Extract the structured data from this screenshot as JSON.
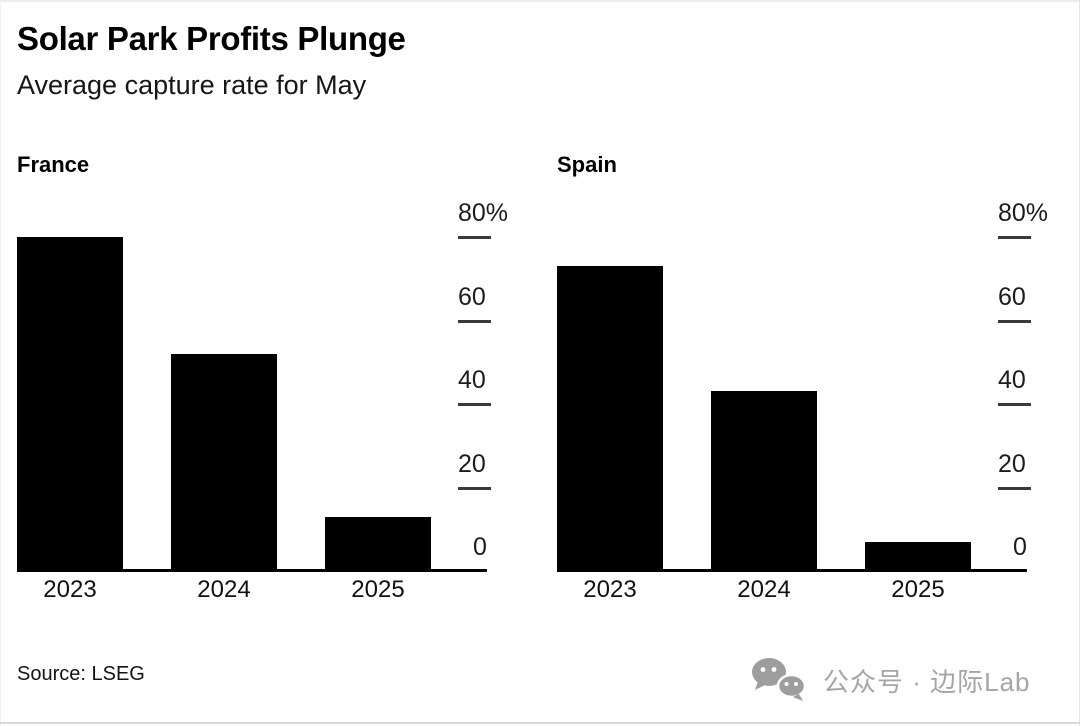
{
  "header": {
    "title": "Solar Park Profits Plunge",
    "subtitle": "Average capture rate for May"
  },
  "chart_data": {
    "type": "bar",
    "title": "Solar Park Profits Plunge",
    "subtitle": "Average capture rate for May",
    "unit": "percent",
    "categories": [
      "2023",
      "2024",
      "2025"
    ],
    "ylim": [
      0,
      80
    ],
    "yticks": [
      {
        "label": "80%",
        "value": 80
      },
      {
        "label": "60",
        "value": 60
      },
      {
        "label": "40",
        "value": 40
      },
      {
        "label": "20",
        "value": 20
      },
      {
        "label": "0",
        "value": 0
      }
    ],
    "panels": [
      {
        "name": "France",
        "values": [
          80,
          52,
          13
        ]
      },
      {
        "name": "Spain",
        "values": [
          73,
          43,
          7
        ]
      }
    ],
    "bar_color": "#000000",
    "axis_color": "#000000",
    "tick_color": "#3a3a3a",
    "grid": false,
    "legend": "none",
    "tick_side": "right"
  },
  "footer": {
    "source": "Source: LSEG",
    "watermark": {
      "icon": "wechat-icon",
      "text": "公众号 · 边际Lab",
      "color": "#a5a5a5"
    }
  }
}
